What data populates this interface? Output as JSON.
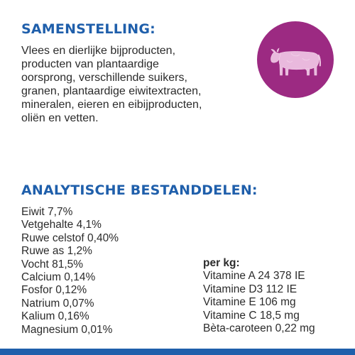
{
  "composition": {
    "heading": "SAMENSTELLING:",
    "lines": [
      "Vlees en dierlijke bijproducten,",
      "producten van plantaardige",
      "oorsprong, verschillende suikers,",
      "granen, plantaardige eiwitextracten,",
      "mineralen, eieren en eibijproducten,",
      "oliën en vetten."
    ],
    "badge": {
      "icon": "cow-icon",
      "background_color": "#9c2a82"
    }
  },
  "analysis": {
    "heading": "ANALYTISCHE BESTANDDELEN:",
    "items": [
      "Eiwit 7,7%",
      "Vetgehalte 4,1%",
      "Ruwe celstof 0,40%",
      "Ruwe as 1,2%",
      "Vocht 81,5%",
      "Calcium 0,14%",
      "Fosfor 0,12%",
      "Natrium 0,07%",
      "Kalium 0,16%",
      "Magnesium 0,01%"
    ],
    "per_kg_label": "per kg:",
    "vitamins": [
      "Vitamine A 24 378 IE",
      "Vitamine D3 112 IE",
      "Vitamine E 106 mg",
      "Vitamine C 18,5 mg",
      "Bèta-caroteen 0,22 mg"
    ]
  },
  "colors": {
    "heading": "#1f5fab",
    "badge": "#9c2a82",
    "bottom_bar": "#1f5fab",
    "text": "#2b2b2b"
  }
}
